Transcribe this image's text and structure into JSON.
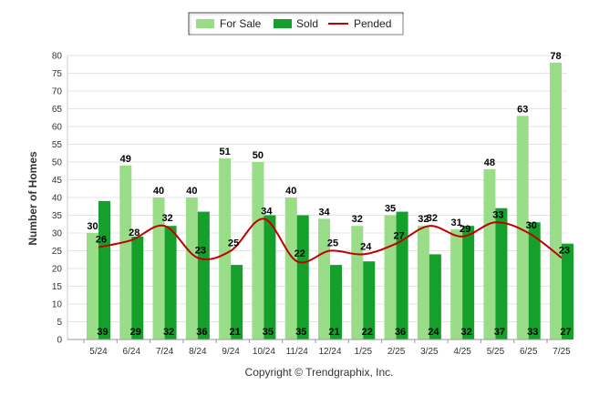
{
  "chart_data": {
    "type": "bar",
    "categories": [
      "5/24",
      "6/24",
      "7/24",
      "8/24",
      "9/24",
      "10/24",
      "11/24",
      "12/24",
      "1/25",
      "2/25",
      "3/25",
      "4/25",
      "5/25",
      "6/25",
      "7/25"
    ],
    "series": [
      {
        "name": "For Sale",
        "type": "bar",
        "color": "#99dd88",
        "values": [
          30,
          49,
          40,
          40,
          51,
          50,
          40,
          34,
          32,
          35,
          32,
          31,
          48,
          63,
          78
        ]
      },
      {
        "name": "Sold",
        "type": "bar",
        "color": "#14a02a",
        "values": [
          39,
          29,
          32,
          36,
          21,
          35,
          35,
          21,
          22,
          36,
          24,
          32,
          37,
          33,
          27
        ]
      },
      {
        "name": "Pended",
        "type": "line",
        "color": "#c00000",
        "values": [
          26,
          28,
          32,
          23,
          25,
          34,
          22,
          25,
          24,
          27,
          32,
          29,
          33,
          30,
          23
        ]
      }
    ],
    "title": "",
    "xlabel": "",
    "ylabel": "Number of Homes",
    "ylim": [
      0,
      80
    ],
    "yticks": [
      0,
      5,
      10,
      15,
      20,
      25,
      30,
      35,
      40,
      45,
      50,
      55,
      60,
      65,
      70,
      75,
      80
    ],
    "grid": true,
    "legend_position": "top-center"
  },
  "credit": "Copyright © Trendgraphix, Inc."
}
